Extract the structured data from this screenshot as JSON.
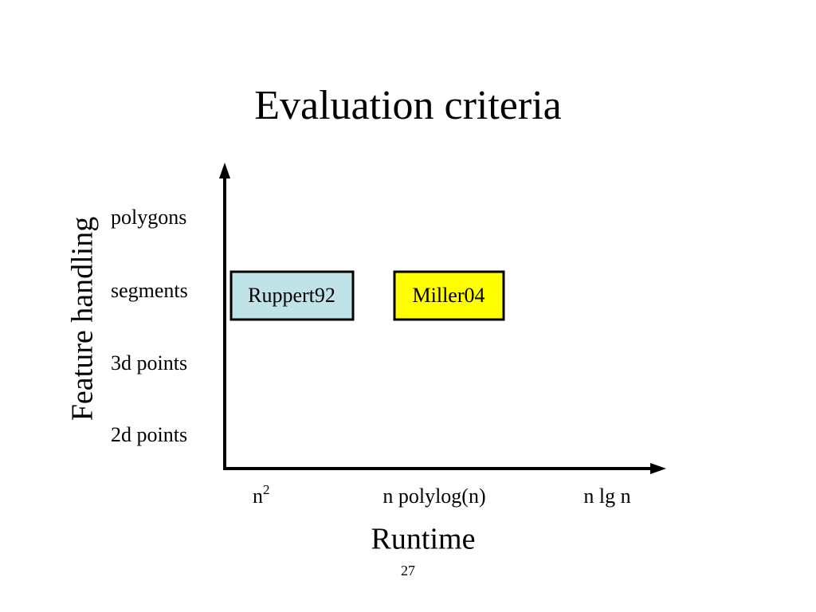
{
  "title": "Evaluation criteria",
  "y_axis": {
    "label": "Feature handling",
    "levels": [
      "polygons",
      "segments",
      "3d points",
      "2d points"
    ]
  },
  "x_axis": {
    "label": "Runtime",
    "levels": [
      {
        "base": "n",
        "sup": "2"
      },
      "n polylog(n)",
      "n lg n"
    ]
  },
  "boxes": [
    {
      "label": "Ruppert92"
    },
    {
      "label": "Miller04"
    }
  ],
  "page_number": "27"
}
